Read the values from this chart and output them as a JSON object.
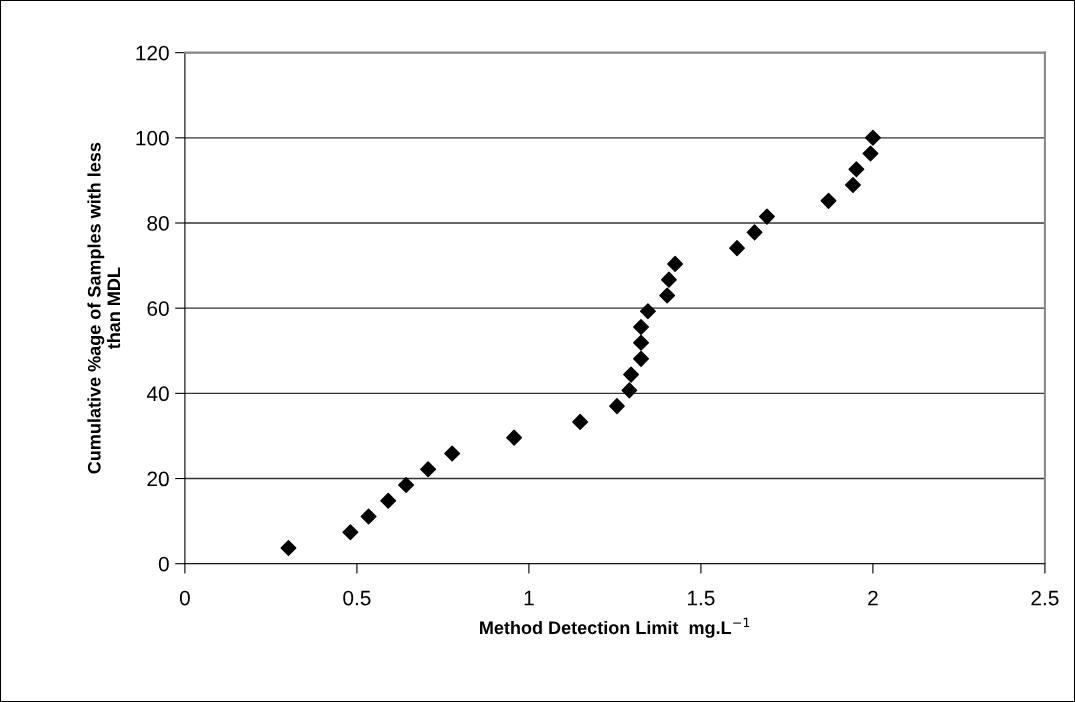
{
  "chart_data": {
    "type": "scatter",
    "xlabel": "Method Detection Limit  mg.L$^{−1}$",
    "ylabel": "Cumulative %age of Samples with less\nthan MDL",
    "x": [
      0.301,
      0.481,
      0.534,
      0.591,
      0.643,
      0.707,
      0.777,
      0.957,
      1.149,
      1.256,
      1.292,
      1.297,
      1.326,
      1.326,
      1.326,
      1.346,
      1.402,
      1.407,
      1.425,
      1.605,
      1.656,
      1.692,
      1.871,
      1.942,
      1.952,
      1.993,
      2.0
    ],
    "series": [
      {
        "color": "#000000",
        "values": [
          3.7,
          7.4,
          11.1,
          14.8,
          18.5,
          22.2,
          25.9,
          29.6,
          33.3,
          37,
          40.7,
          44.4,
          48.1,
          51.9,
          55.6,
          59.3,
          63,
          66.7,
          70.4,
          74.1,
          77.8,
          81.5,
          85.2,
          88.9,
          92.6,
          96.3,
          100
        ]
      }
    ],
    "xlim": [
      0,
      2.5
    ],
    "xticks": [
      0,
      0.5,
      1,
      1.5,
      2,
      2.5
    ],
    "ylim": [
      0,
      120
    ],
    "yticks": [
      0,
      20,
      40,
      60,
      80,
      100,
      120
    ],
    "grid": "y",
    "marker": "diamond",
    "legend": false
  }
}
